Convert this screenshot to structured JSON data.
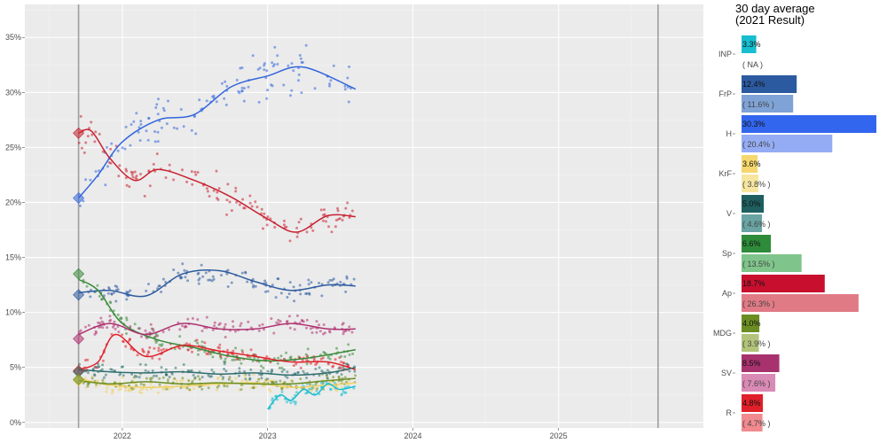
{
  "chart_data": [
    {
      "type": "scatter",
      "title": "",
      "xlabel": "",
      "ylabel": "",
      "xlim": [
        "2021-05-01",
        "2025-12-31"
      ],
      "ylim": [
        -0.5,
        38
      ],
      "x_ticks": [
        "2022",
        "2023",
        "2024",
        "2025"
      ],
      "x_tick_dates": [
        "2022-01-01",
        "2023-01-01",
        "2024-01-01",
        "2025-01-01"
      ],
      "y_ticks": [
        0,
        5,
        10,
        15,
        20,
        25,
        30,
        35
      ],
      "y_tick_labels": [
        "0%",
        "5%",
        "10%",
        "15%",
        "20%",
        "25%",
        "30%",
        "35%"
      ],
      "grid": true,
      "vertical_markers": [
        "2021-09-13",
        "2025-09-08"
      ],
      "colors": {
        "INP": "#17becf",
        "FrP": "#2c5aa0",
        "H": "#3366dd",
        "KrF": "#f0d060",
        "V": "#2e6e6e",
        "Sp": "#3a8a3a",
        "Ap": "#c8202f",
        "MDG": "#6b8e23",
        "SV": "#b03070",
        "R": "#e0202a"
      },
      "series": [
        {
          "name": "H",
          "start_marker": 20.4,
          "x": [
            "2021-09-13",
            "2021-11-01",
            "2022-01-01",
            "2022-04-01",
            "2022-07-01",
            "2022-10-01",
            "2023-01-01",
            "2023-04-01",
            "2023-08-10"
          ],
          "values": [
            20.4,
            22.5,
            25.5,
            27.5,
            28.0,
            30.5,
            31.5,
            32.3,
            30.3
          ]
        },
        {
          "name": "Ap",
          "start_marker": 26.3,
          "x": [
            "2021-09-13",
            "2021-10-15",
            "2021-12-01",
            "2022-02-01",
            "2022-04-01",
            "2022-07-01",
            "2022-10-01",
            "2023-01-01",
            "2023-03-15",
            "2023-06-01",
            "2023-08-10"
          ],
          "values": [
            26.3,
            26.5,
            24.0,
            22.0,
            23.0,
            22.0,
            20.5,
            18.5,
            17.3,
            18.8,
            18.7
          ]
        },
        {
          "name": "FrP",
          "start_marker": 11.6,
          "x": [
            "2021-09-13",
            "2021-12-01",
            "2022-03-01",
            "2022-06-01",
            "2022-09-01",
            "2022-12-01",
            "2023-03-01",
            "2023-06-01",
            "2023-08-10"
          ],
          "values": [
            11.8,
            12.0,
            11.5,
            13.5,
            13.8,
            12.8,
            12.0,
            12.5,
            12.4
          ]
        },
        {
          "name": "Sp",
          "start_marker": 13.5,
          "x": [
            "2021-09-13",
            "2021-11-01",
            "2022-01-01",
            "2022-04-01",
            "2022-07-01",
            "2022-10-01",
            "2023-01-01",
            "2023-04-01",
            "2023-08-10"
          ],
          "values": [
            13.0,
            12.0,
            9.0,
            7.5,
            6.8,
            6.0,
            5.6,
            5.8,
            6.6
          ]
        },
        {
          "name": "SV",
          "start_marker": 7.6,
          "x": [
            "2021-09-13",
            "2021-12-01",
            "2022-03-01",
            "2022-06-01",
            "2022-09-01",
            "2022-12-01",
            "2023-03-01",
            "2023-06-01",
            "2023-08-10"
          ],
          "values": [
            8.0,
            9.0,
            8.0,
            9.0,
            8.5,
            8.5,
            9.0,
            8.5,
            8.5
          ]
        },
        {
          "name": "R",
          "start_marker": 4.7,
          "x": [
            "2021-09-13",
            "2021-11-01",
            "2021-12-15",
            "2022-03-01",
            "2022-06-01",
            "2022-09-01",
            "2022-12-01",
            "2023-03-01",
            "2023-06-01",
            "2023-08-10"
          ],
          "values": [
            4.8,
            5.5,
            8.0,
            6.0,
            7.0,
            6.5,
            6.0,
            5.5,
            5.5,
            4.8
          ]
        },
        {
          "name": "V",
          "start_marker": 4.6,
          "x": [
            "2021-09-13",
            "2021-12-01",
            "2022-03-01",
            "2022-06-01",
            "2022-09-01",
            "2022-12-01",
            "2023-03-01",
            "2023-06-01",
            "2023-08-10"
          ],
          "values": [
            4.8,
            4.6,
            4.5,
            4.6,
            4.4,
            4.5,
            4.3,
            4.5,
            5.0
          ]
        },
        {
          "name": "KrF",
          "start_marker": 3.8,
          "x": [
            "2021-09-13",
            "2021-12-01",
            "2022-03-01",
            "2022-06-01",
            "2022-09-01",
            "2022-12-01",
            "2023-03-01",
            "2023-06-01",
            "2023-08-10"
          ],
          "values": [
            4.0,
            3.4,
            3.2,
            3.3,
            3.5,
            3.6,
            3.2,
            3.4,
            3.6
          ]
        },
        {
          "name": "MDG",
          "start_marker": 3.9,
          "x": [
            "2021-09-13",
            "2021-12-01",
            "2022-03-01",
            "2022-06-01",
            "2022-09-01",
            "2022-12-01",
            "2023-03-01",
            "2023-06-01",
            "2023-08-10"
          ],
          "values": [
            3.8,
            3.5,
            3.7,
            3.5,
            3.6,
            3.5,
            3.5,
            3.8,
            4.0
          ]
        },
        {
          "name": "INP",
          "x": [
            "2023-01-01",
            "2023-02-01",
            "2023-03-01",
            "2023-04-01",
            "2023-05-01",
            "2023-06-01",
            "2023-07-01",
            "2023-08-10"
          ],
          "values": [
            1.2,
            2.5,
            2.0,
            3.0,
            2.5,
            3.5,
            3.0,
            3.3
          ]
        }
      ]
    },
    {
      "type": "bar",
      "title": "30 day average",
      "subtitle": "(2021 Result)",
      "categories": [
        "INP",
        "FrP",
        "H",
        "KrF",
        "V",
        "Sp",
        "Ap",
        "MDG",
        "SV",
        "R"
      ],
      "values": [
        3.3,
        12.4,
        30.3,
        3.6,
        5.0,
        6.6,
        18.7,
        4.0,
        8.5,
        4.8
      ],
      "value_labels": [
        "3.3%",
        "12.4%",
        "30.3%",
        "3.6%",
        "5.0%",
        "6.6%",
        "18.7%",
        "4.0%",
        "8.5%",
        "4.8%"
      ],
      "previous": [
        null,
        11.6,
        20.4,
        3.8,
        4.6,
        13.5,
        26.3,
        3.9,
        7.6,
        4.7
      ],
      "previous_labels": [
        "( NA )",
        "( 11.6% )",
        "( 20.4% )",
        "( 3.8% )",
        "( 4.6% )",
        "( 13.5% )",
        "( 26.3% )",
        "( 3.9% )",
        "( 7.6% )",
        "( 4.7% )"
      ],
      "colors": [
        "#17becf",
        "#2c5aa0",
        "#3366ee",
        "#f5d76e",
        "#1f5f5f",
        "#2e8b3a",
        "#c8102e",
        "#6b8e23",
        "#a8326e",
        "#e0202a"
      ],
      "prev_colors": [
        "#17becf",
        "#7fa3d6",
        "#94acf4",
        "#f7e6a0",
        "#6aa3a3",
        "#7fc48a",
        "#e07a85",
        "#b2c47a",
        "#d98ab5",
        "#f08a8f"
      ]
    }
  ]
}
